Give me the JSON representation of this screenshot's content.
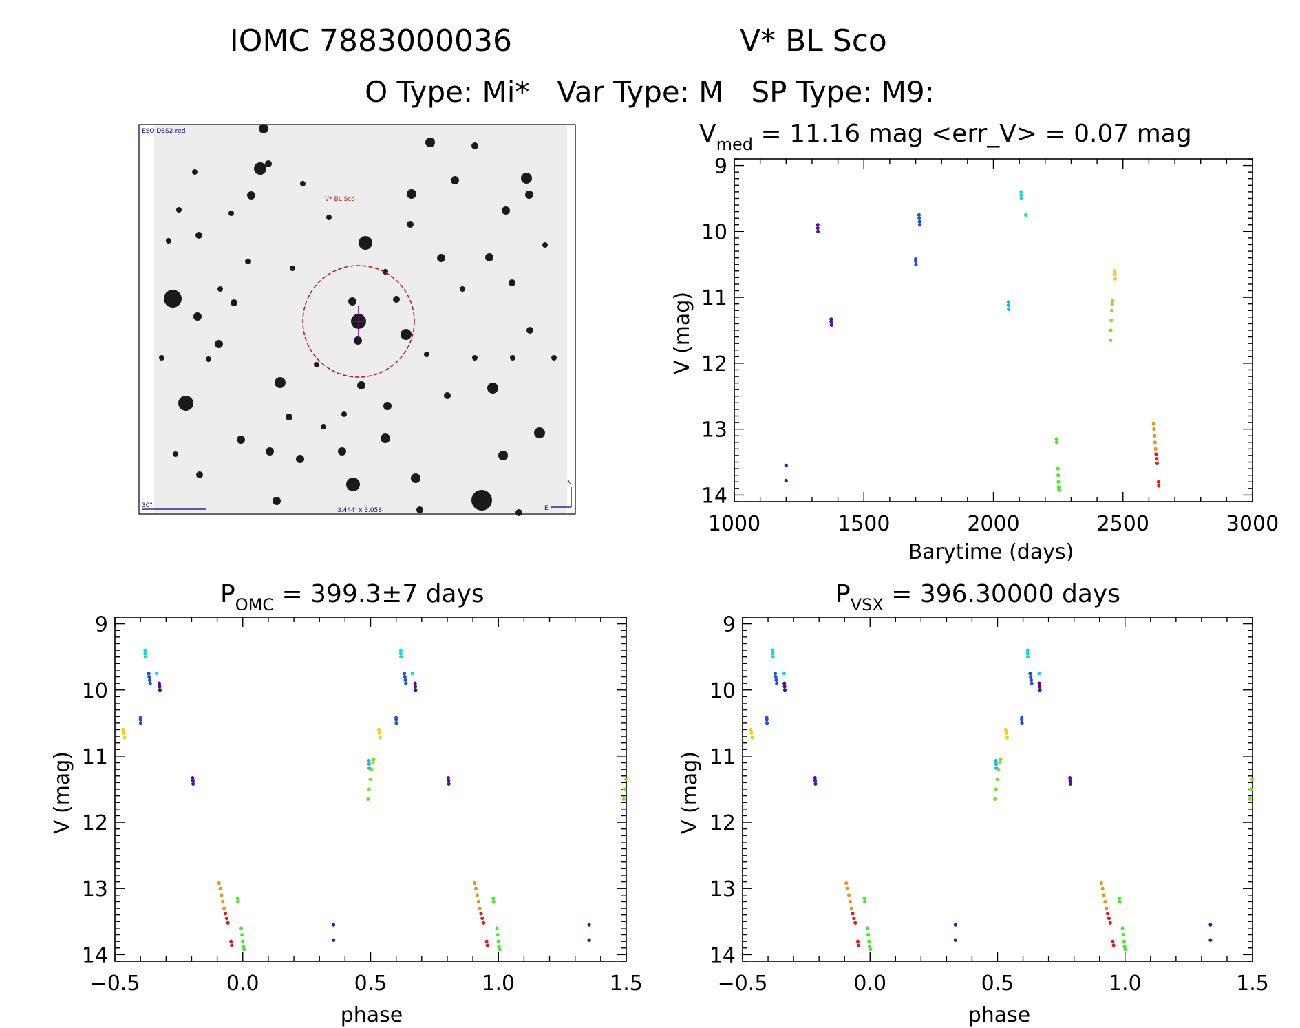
{
  "header": {
    "title_id": "IOMC 7883000036",
    "title_name": "V* BL Sco",
    "subtitle": "O Type: Mi*   Var Type: M   SP Type: M9:"
  },
  "finding_chart": {
    "survey_label": "ESO DSS2-red",
    "target_label": "V* BL Sco",
    "scale_label": "30\"",
    "field_label": "3.444' x 3.058'",
    "north_label": "N",
    "east_label": "E"
  },
  "colors": {
    "purple": "#5a0a9a",
    "violet": "#4b10b0",
    "blue": "#1e4fe0",
    "azure": "#1878f0",
    "cyan": "#14d8e8",
    "sky": "#10b8f0",
    "green": "#3cf020",
    "lime": "#7de020",
    "yellow": "#f0d010",
    "orange": "#f09010",
    "red": "#e81818"
  },
  "chart_data": [
    {
      "type": "scatter",
      "title": "V_med = 11.16 mag <err_V> = 0.07 mag",
      "title_parts": {
        "p1": "V",
        "sub": "med",
        "p2": " = 11.16 mag <err_V> = 0.07 mag"
      },
      "xlabel": "Barytime (days)",
      "ylabel": "V (mag)",
      "xlim": [
        1000,
        3000
      ],
      "ylim": [
        14.1,
        8.9
      ],
      "xticks": [
        1000,
        1500,
        2000,
        2500,
        3000
      ],
      "xtick_labels": [
        "1000",
        "1500",
        "2000",
        "2500",
        "3000"
      ],
      "yticks": [
        9,
        10,
        11,
        12,
        13,
        14
      ],
      "ytick_labels": [
        "9",
        "10",
        "11",
        "12",
        "13",
        "14"
      ],
      "groups": [
        {
          "color": "purple",
          "x": [
            1200,
            1200
          ],
          "y": [
            13.55,
            13.78
          ]
        },
        {
          "color": "purple",
          "x": [
            1322,
            1322,
            1323
          ],
          "y": [
            9.9,
            9.95,
            10.0
          ]
        },
        {
          "color": "violet",
          "x": [
            1374,
            1374,
            1375
          ],
          "y": [
            11.33,
            11.37,
            11.42
          ]
        },
        {
          "color": "blue",
          "x": [
            1700,
            1700,
            1701
          ],
          "y": [
            10.42,
            10.45,
            10.5
          ]
        },
        {
          "color": "blue",
          "x": [
            1713,
            1714,
            1715,
            1716
          ],
          "y": [
            9.75,
            9.8,
            9.85,
            9.9
          ]
        },
        {
          "color": "sky",
          "x": [
            2058,
            2058,
            2059
          ],
          "y": [
            11.07,
            11.12,
            11.18
          ]
        },
        {
          "color": "cyan",
          "x": [
            2107,
            2107,
            2108
          ],
          "y": [
            9.4,
            9.45,
            9.5
          ]
        },
        {
          "color": "cyan",
          "x": [
            2125
          ],
          "y": [
            9.75
          ]
        },
        {
          "color": "green",
          "x": [
            2243,
            2244
          ],
          "y": [
            13.15,
            13.2
          ]
        },
        {
          "color": "green",
          "x": [
            2249,
            2250,
            2251,
            2252,
            2253
          ],
          "y": [
            13.6,
            13.7,
            13.8,
            13.88,
            13.92
          ]
        },
        {
          "color": "lime",
          "x": [
            2452,
            2453,
            2455,
            2457,
            2459,
            2460
          ],
          "y": [
            11.65,
            11.5,
            11.35,
            11.2,
            11.1,
            11.05
          ]
        },
        {
          "color": "yellow",
          "x": [
            2468,
            2469,
            2470
          ],
          "y": [
            10.6,
            10.65,
            10.72
          ]
        },
        {
          "color": "orange",
          "x": [
            2618,
            2620,
            2622,
            2624,
            2626
          ],
          "y": [
            12.92,
            13.0,
            13.1,
            13.2,
            13.3
          ]
        },
        {
          "color": "red",
          "x": [
            2628,
            2630,
            2632
          ],
          "y": [
            13.38,
            13.45,
            13.52
          ]
        },
        {
          "color": "red",
          "x": [
            2637,
            2638
          ],
          "y": [
            13.8,
            13.86
          ]
        }
      ]
    },
    {
      "type": "scatter",
      "title": "P_OMC = 399.3±7 days",
      "title_parts": {
        "p1": "P",
        "sub": "OMC",
        "p2": " = 399.3±7 days"
      },
      "xlabel": "phase",
      "ylabel": "V (mag)",
      "xlim": [
        -0.5,
        1.5
      ],
      "ylim": [
        14.1,
        8.9
      ],
      "xticks": [
        -0.5,
        0.0,
        0.5,
        1.0,
        1.5
      ],
      "xtick_labels": [
        "−0.5",
        "0.0",
        "0.5",
        "1.0",
        "1.5"
      ],
      "yticks": [
        9,
        10,
        11,
        12,
        13,
        14
      ],
      "ytick_labels": [
        "9",
        "10",
        "11",
        "12",
        "13",
        "14"
      ],
      "groups": [
        {
          "color": "purple",
          "x": [
            0.355,
            0.355,
            1.355,
            1.355
          ],
          "y": [
            13.55,
            13.78,
            13.55,
            13.78
          ]
        },
        {
          "color": "purple",
          "x": [
            0.674,
            0.675,
            0.676,
            -0.326,
            -0.325,
            -0.324
          ],
          "y": [
            9.9,
            9.95,
            10.0,
            9.9,
            9.95,
            10.0
          ]
        },
        {
          "color": "violet",
          "x": [
            0.804,
            0.805,
            0.806,
            -0.196,
            -0.195,
            -0.194
          ],
          "y": [
            11.33,
            11.37,
            11.42,
            11.33,
            11.37,
            11.42
          ]
        },
        {
          "color": "blue",
          "x": [
            0.6,
            0.6,
            0.601,
            -0.4,
            -0.4,
            -0.399
          ],
          "y": [
            10.42,
            10.45,
            10.5,
            10.42,
            10.45,
            10.5
          ]
        },
        {
          "color": "blue",
          "x": [
            0.632,
            0.634,
            0.636,
            0.638,
            -0.368,
            -0.366,
            -0.364,
            -0.362
          ],
          "y": [
            9.75,
            9.8,
            9.85,
            9.9,
            9.75,
            9.8,
            9.85,
            9.9
          ]
        },
        {
          "color": "sky",
          "x": [
            0.493,
            0.494,
            0.495,
            -0.507,
            -0.506
          ],
          "y": [
            11.07,
            11.12,
            11.18,
            11.07,
            11.12
          ]
        },
        {
          "color": "cyan",
          "x": [
            0.618,
            0.618,
            0.619,
            -0.382,
            -0.382,
            -0.381
          ],
          "y": [
            9.4,
            9.45,
            9.5,
            9.4,
            9.45,
            9.5
          ]
        },
        {
          "color": "cyan",
          "x": [
            0.663,
            -0.337
          ],
          "y": [
            9.75,
            9.75
          ]
        },
        {
          "color": "green",
          "x": [
            0.98,
            0.981,
            -0.02,
            -0.019
          ],
          "y": [
            13.15,
            13.2,
            13.15,
            13.2
          ]
        },
        {
          "color": "green",
          "x": [
            0.994,
            0.997,
            1.0,
            1.002,
            1.005,
            -0.006,
            -0.003,
            0.0,
            0.002,
            0.005
          ],
          "y": [
            13.6,
            13.7,
            13.8,
            13.88,
            13.92,
            13.6,
            13.7,
            13.8,
            13.88,
            13.92
          ]
        },
        {
          "color": "lime",
          "x": [
            0.49,
            0.494,
            0.499,
            0.504,
            0.509,
            0.512,
            1.49,
            1.494,
            1.499,
            -0.51,
            -0.506
          ],
          "y": [
            11.65,
            11.5,
            11.35,
            11.2,
            11.1,
            11.05,
            11.65,
            11.5,
            11.35,
            11.1,
            11.05
          ]
        },
        {
          "color": "yellow",
          "x": [
            0.532,
            0.535,
            0.538,
            -0.468,
            -0.465,
            -0.462
          ],
          "y": [
            10.6,
            10.65,
            10.72,
            10.6,
            10.65,
            10.72
          ]
        },
        {
          "color": "orange",
          "x": [
            0.907,
            0.912,
            0.917,
            0.922,
            0.927,
            -0.093,
            -0.088,
            -0.083,
            -0.078,
            -0.073
          ],
          "y": [
            12.92,
            13.0,
            13.1,
            13.2,
            13.3,
            12.92,
            13.0,
            13.1,
            13.2,
            13.3
          ]
        },
        {
          "color": "red",
          "x": [
            0.932,
            0.937,
            0.942,
            -0.068,
            -0.063,
            -0.058
          ],
          "y": [
            13.38,
            13.45,
            13.52,
            13.38,
            13.45,
            13.52
          ]
        },
        {
          "color": "red",
          "x": [
            0.954,
            0.957,
            -0.046,
            -0.043
          ],
          "y": [
            13.8,
            13.86,
            13.8,
            13.86
          ]
        }
      ]
    },
    {
      "type": "scatter",
      "title": "P_VSX = 396.30000 days",
      "title_parts": {
        "p1": "P",
        "sub": "VSX",
        "p2": " = 396.30000 days"
      },
      "xlabel": "phase",
      "ylabel": "V (mag)",
      "xlim": [
        -0.5,
        1.5
      ],
      "ylim": [
        14.1,
        8.9
      ],
      "xticks": [
        -0.5,
        0.0,
        0.5,
        1.0,
        1.5
      ],
      "xtick_labels": [
        "−0.5",
        "0.0",
        "0.5",
        "1.0",
        "1.5"
      ],
      "yticks": [
        9,
        10,
        11,
        12,
        13,
        14
      ],
      "ytick_labels": [
        "9",
        "10",
        "11",
        "12",
        "13",
        "14"
      ],
      "groups": [
        {
          "color": "purple",
          "x": [
            0.335,
            0.335,
            1.335,
            1.335
          ],
          "y": [
            13.55,
            13.78,
            13.55,
            13.78
          ]
        },
        {
          "color": "purple",
          "x": [
            0.664,
            0.665,
            0.666,
            -0.336,
            -0.335,
            -0.334
          ],
          "y": [
            9.9,
            9.95,
            10.0,
            9.9,
            9.95,
            10.0
          ]
        },
        {
          "color": "violet",
          "x": [
            0.784,
            0.785,
            0.786,
            -0.216,
            -0.215,
            -0.214
          ],
          "y": [
            11.33,
            11.37,
            11.42,
            11.33,
            11.37,
            11.42
          ]
        },
        {
          "color": "blue",
          "x": [
            0.595,
            0.595,
            0.596,
            -0.405,
            -0.405,
            -0.404
          ],
          "y": [
            10.42,
            10.45,
            10.5,
            10.42,
            10.45,
            10.5
          ]
        },
        {
          "color": "blue",
          "x": [
            0.628,
            0.63,
            0.632,
            0.634,
            -0.372,
            -0.37,
            -0.368,
            -0.366
          ],
          "y": [
            9.75,
            9.8,
            9.85,
            9.9,
            9.75,
            9.8,
            9.85,
            9.9
          ]
        },
        {
          "color": "sky",
          "x": [
            0.493,
            0.494,
            0.495,
            -0.507,
            -0.506
          ],
          "y": [
            11.07,
            11.12,
            11.18,
            11.07,
            11.12
          ]
        },
        {
          "color": "cyan",
          "x": [
            0.618,
            0.618,
            0.619,
            -0.382,
            -0.382,
            -0.381
          ],
          "y": [
            9.4,
            9.45,
            9.5,
            9.4,
            9.45,
            9.5
          ]
        },
        {
          "color": "cyan",
          "x": [
            0.663,
            -0.337
          ],
          "y": [
            9.75,
            9.75
          ]
        },
        {
          "color": "green",
          "x": [
            0.978,
            0.979,
            -0.022,
            -0.021
          ],
          "y": [
            13.15,
            13.2,
            13.15,
            13.2
          ]
        },
        {
          "color": "green",
          "x": [
            0.99,
            0.993,
            0.996,
            0.998,
            1.001,
            -0.01,
            -0.007,
            -0.004,
            -0.002,
            0.001
          ],
          "y": [
            13.6,
            13.7,
            13.8,
            13.88,
            13.92,
            13.6,
            13.7,
            13.8,
            13.88,
            13.92
          ]
        },
        {
          "color": "lime",
          "x": [
            0.49,
            0.494,
            0.499,
            0.504,
            0.509,
            0.512,
            1.49,
            1.494,
            1.499,
            -0.51,
            -0.506
          ],
          "y": [
            11.65,
            11.5,
            11.35,
            11.2,
            11.1,
            11.05,
            11.65,
            11.5,
            11.35,
            11.1,
            11.05
          ]
        },
        {
          "color": "yellow",
          "x": [
            0.532,
            0.535,
            0.538,
            -0.468,
            -0.465,
            -0.462
          ],
          "y": [
            10.6,
            10.65,
            10.72,
            10.6,
            10.65,
            10.72
          ]
        },
        {
          "color": "orange",
          "x": [
            0.907,
            0.912,
            0.917,
            0.922,
            0.927,
            -0.093,
            -0.088,
            -0.083,
            -0.078,
            -0.073
          ],
          "y": [
            12.92,
            13.0,
            13.1,
            13.2,
            13.3,
            12.92,
            13.0,
            13.1,
            13.2,
            13.3
          ]
        },
        {
          "color": "red",
          "x": [
            0.932,
            0.937,
            0.942,
            -0.068,
            -0.063,
            -0.058
          ],
          "y": [
            13.38,
            13.45,
            13.52,
            13.38,
            13.45,
            13.52
          ]
        },
        {
          "color": "red",
          "x": [
            0.952,
            0.955,
            -0.048,
            -0.045
          ],
          "y": [
            13.8,
            13.86,
            13.8,
            13.86
          ]
        }
      ]
    }
  ]
}
